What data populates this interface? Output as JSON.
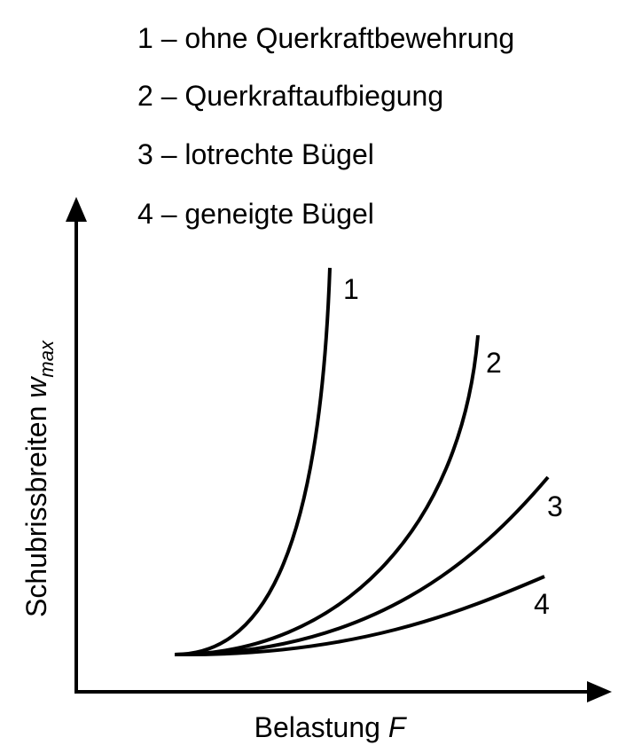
{
  "legend": [
    "1 – ohne Querkraftbewehrung",
    "2 – Querkraftaufbiegung",
    "3 – lotrechte Bügel",
    "4 – geneigte Bügel"
  ],
  "curves": [
    {
      "label": "1"
    },
    {
      "label": "2"
    },
    {
      "label": "3"
    },
    {
      "label": "4"
    }
  ],
  "y_axis": {
    "label": "Schubrissbreiten",
    "symbol": "w",
    "subscript": "max"
  },
  "x_axis": {
    "label": "Belastung",
    "symbol": "F"
  }
}
